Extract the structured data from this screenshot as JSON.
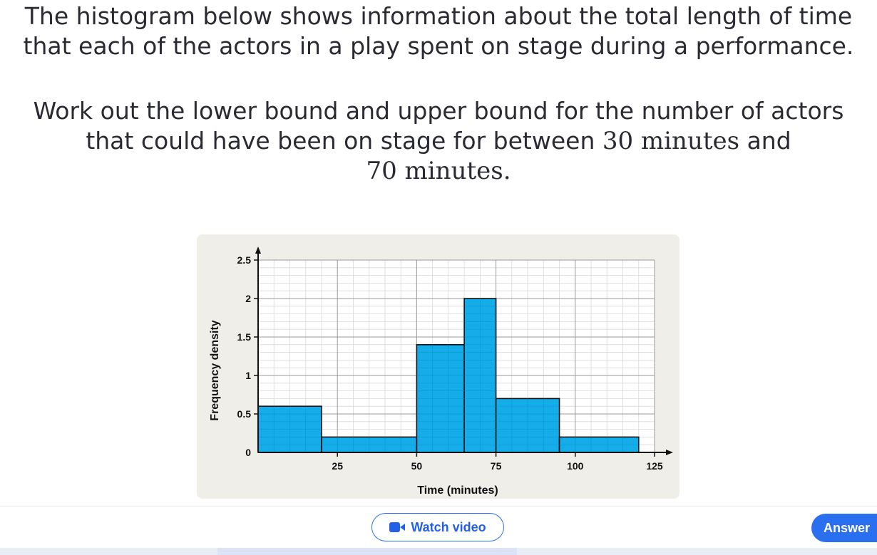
{
  "question": {
    "line1": "The histogram below shows information about the total length of time",
    "line2": "that each of the actors in a play spent on stage during a performance.",
    "task_line1": "Work out the lower bound and upper bound for the number of actors",
    "task_line2_pre": "that could have been on stage for between ",
    "task_value1": "30 minutes",
    "task_line2_post": " and",
    "task_value2": "70 minutes."
  },
  "chart_data": {
    "type": "bar",
    "xlabel": "Time (minutes)",
    "ylabel": "Frequency density",
    "xlim": [
      0,
      125
    ],
    "ylim": [
      0,
      2.5
    ],
    "x_ticks": [
      25,
      50,
      75,
      100,
      125
    ],
    "y_ticks": [
      0,
      0.5,
      1,
      1.5,
      2,
      2.5
    ],
    "y_tick_labels": [
      "0",
      "0.5",
      "1",
      "1.5",
      "2",
      "2.5"
    ],
    "grid": true,
    "bar_color": "#00a6e8",
    "bars": [
      {
        "x_start": 0,
        "x_end": 20,
        "value": 0.6
      },
      {
        "x_start": 20,
        "x_end": 50,
        "value": 0.2
      },
      {
        "x_start": 50,
        "x_end": 65,
        "value": 1.4
      },
      {
        "x_start": 65,
        "x_end": 75,
        "value": 2.0
      },
      {
        "x_start": 75,
        "x_end": 95,
        "value": 0.7
      },
      {
        "x_start": 95,
        "x_end": 120,
        "value": 0.2
      }
    ]
  },
  "buttons": {
    "watch_video": "Watch video",
    "answer": "Answer"
  },
  "colors": {
    "accent": "#2a6ff0",
    "chart_background": "#f0eee9",
    "bar": "#00a6e8"
  }
}
